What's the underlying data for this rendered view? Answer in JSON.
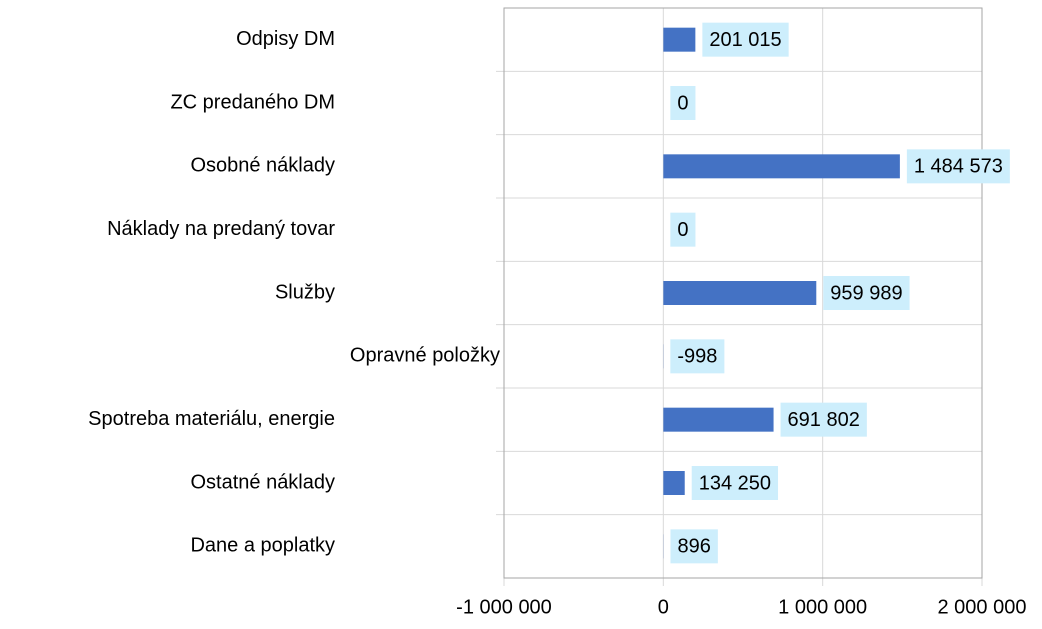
{
  "chart_data": {
    "type": "bar",
    "orientation": "horizontal",
    "categories": [
      "Odpisy DM",
      "ZC predaného DM",
      "Osobné náklady",
      "Náklady na predaný tovar",
      "Služby",
      "Opravné položky",
      "Spotreba materiálu, energie",
      "Ostatné náklady",
      "Dane a poplatky"
    ],
    "values": [
      201015,
      0,
      1484573,
      0,
      959989,
      -998,
      691802,
      134250,
      896
    ],
    "value_labels": [
      "201 015",
      "0",
      "1 484 573",
      "0",
      "959 989",
      "-998",
      "691 802",
      "134 250",
      "896"
    ],
    "color": "#4472c4",
    "xlim": [
      -1000000,
      2000000
    ],
    "xticks": [
      {
        "value": -1000000,
        "label": "-1 000 000"
      },
      0,
      {
        "value": 1000000,
        "label": "1 000 000"
      },
      {
        "value": 2000000,
        "label": "2 000 000"
      }
    ],
    "grid": true
  }
}
